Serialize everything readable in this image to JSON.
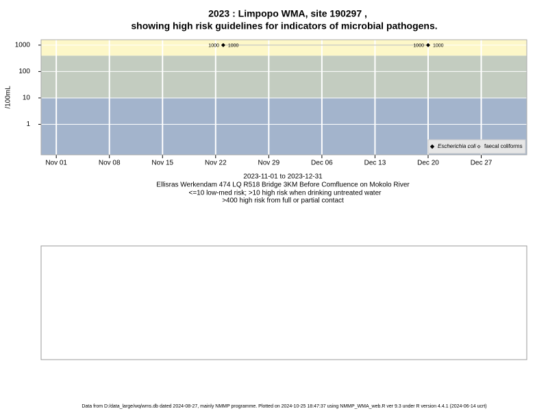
{
  "chart_data": {
    "type": "scatter",
    "title": [
      "2023 : Limpopo WMA, site 190297 ,",
      "showing high risk guidelines for indicators of microbial pathogens."
    ],
    "subtitle": [
      "2023-11-01 to 2023-12-31",
      "Ellisras Werkendam 474 LQ R518 Bridge 3KM Before Comfluence on Mokolo River",
      "<=10 low-med risk; >10 high risk when drinking untreated water",
      ">400 high risk from full or partial contact"
    ],
    "y_label": "/100mL",
    "log_y": true,
    "grid": true,
    "legend": "bottom-right",
    "xlim": [
      "2023-10-30",
      "2024-01-02"
    ],
    "xticks": [
      {
        "value": "2023-11-01",
        "label": "Nov 01"
      },
      {
        "value": "2023-11-08",
        "label": "Nov 08"
      },
      {
        "value": "2023-11-15",
        "label": "Nov 15"
      },
      {
        "value": "2023-11-22",
        "label": "Nov 22"
      },
      {
        "value": "2023-11-29",
        "label": "Nov 29"
      },
      {
        "value": "2023-12-06",
        "label": "Dec 06"
      },
      {
        "value": "2023-12-13",
        "label": "Dec 13"
      },
      {
        "value": "2023-12-20",
        "label": "Dec 20"
      },
      {
        "value": "2023-12-27",
        "label": "Dec 27"
      }
    ],
    "ylim": [
      0.07,
      1600
    ],
    "yticks": [
      1,
      10,
      100,
      1000
    ],
    "thresholds": [
      10,
      400
    ],
    "band_colors": [
      "#a3b4cc",
      "#c3ccc0",
      "#fdf7c8"
    ],
    "series": [
      {
        "name": "Escherichia coli",
        "color": "#000000",
        "x": [
          "2023-11-23",
          "2023-12-20"
        ],
        "values": [
          1000,
          1000
        ]
      },
      {
        "name": "faecal coliforms",
        "color": "#555555",
        "x": [],
        "values": []
      }
    ],
    "footer": "Data from D:/data_large/wq/wms.db dated 2024-08-27, mainly NMMP programme. Plotted on 2024-10-25 18:47:37 using NMMP_WMA_web.R ver 9.3 under R version 4.4.1 (2024-06-14 ucrt)"
  }
}
